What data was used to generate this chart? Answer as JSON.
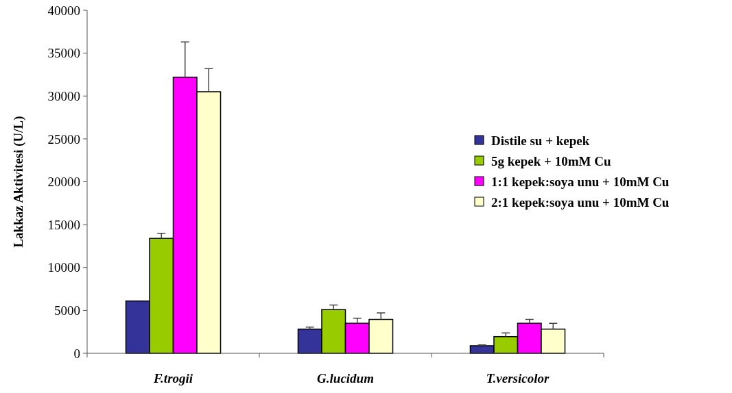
{
  "chart_data": {
    "type": "bar",
    "ylabel": "Lakkaz Aktivitesi (U/L)",
    "categories": [
      "F.trogii",
      "G.lucidum",
      "T.versicolor"
    ],
    "series": [
      {
        "name": "Distile su + kepek",
        "color": "#333399",
        "values": [
          6100,
          2820,
          880
        ],
        "errors": [
          null,
          [
            2820,
            3060
          ],
          [
            880,
            980
          ]
        ]
      },
      {
        "name": "5g kepek + 10mM Cu",
        "color": "#99cc00",
        "values": [
          13400,
          5100,
          1940
        ],
        "errors": [
          [
            13400,
            14000
          ],
          [
            5100,
            5620
          ],
          [
            1940,
            2380
          ]
        ]
      },
      {
        "name": "1:1 kepek:soya unu + 10mM Cu",
        "color": "#ff00ff",
        "values": [
          32200,
          3500,
          3500
        ],
        "errors": [
          [
            32200,
            36300
          ],
          [
            3500,
            4100
          ],
          [
            3500,
            3950
          ]
        ]
      },
      {
        "name": "2:1 kepek:soya unu + 10mM Cu",
        "color": "#ffffcc",
        "values": [
          30500,
          3950,
          2820
        ],
        "errors": [
          [
            30500,
            33200
          ],
          [
            3950,
            4720
          ],
          [
            2820,
            3500
          ]
        ]
      }
    ],
    "ylim": [
      0,
      40000
    ],
    "yticks": [
      0,
      5000,
      10000,
      15000,
      20000,
      25000,
      30000,
      35000,
      40000
    ],
    "grid": false,
    "legend": "right"
  }
}
